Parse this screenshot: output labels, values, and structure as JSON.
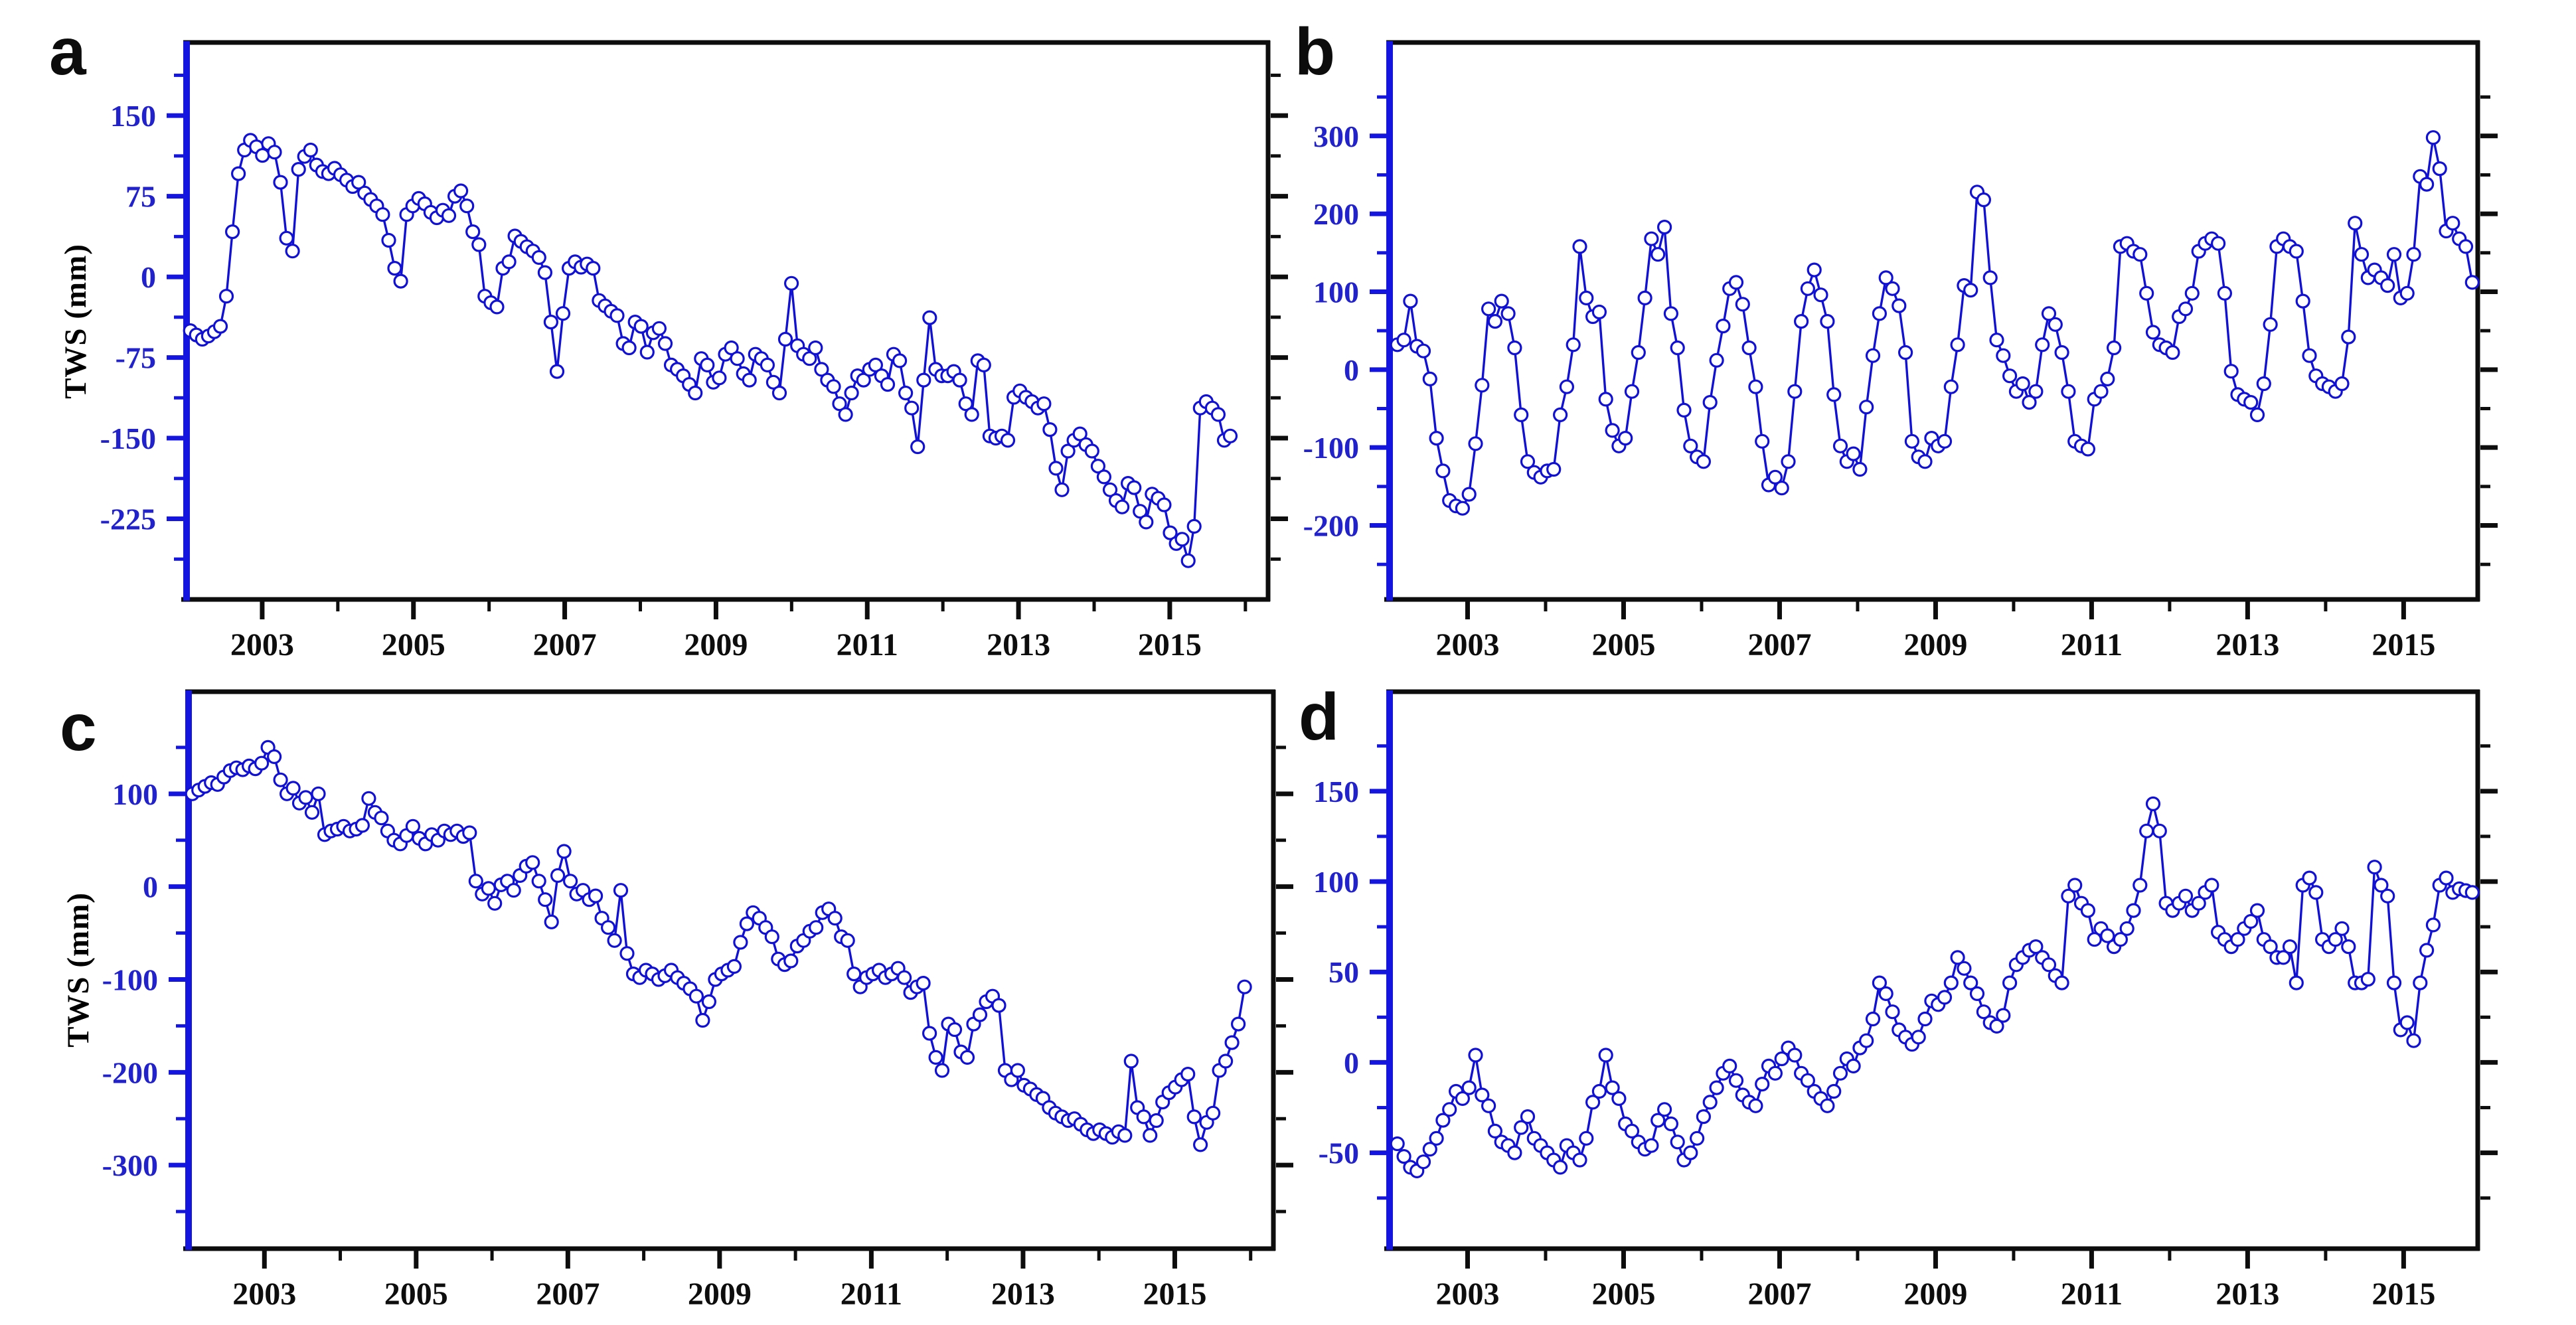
{
  "figure": {
    "background": "#ffffff",
    "series_color": "#1111d6",
    "marker_fill": "#ffffff",
    "y_label_color": "#2222cc",
    "left_axis_color": "#1515e0",
    "frame_color": "#0d0d0d",
    "x_label_color": "#0d0d0d"
  },
  "chart_data": [
    {
      "id": "panel-a",
      "panel_label": "a",
      "type": "line",
      "title": "",
      "xlabel": "",
      "ylabel": "TWS (mm)",
      "legend": null,
      "grid": false,
      "marker": "open-circle",
      "xlim": [
        2002.0,
        2016.3
      ],
      "ylim": [
        -300,
        218
      ],
      "x_major_ticks": [
        2003,
        2005,
        2007,
        2009,
        2011,
        2013,
        2015
      ],
      "x_minor_ticks": [
        2004,
        2006,
        2008,
        2010,
        2012,
        2014,
        2016
      ],
      "y_major_ticks": [
        150,
        75,
        0,
        -75,
        -150,
        -225
      ],
      "y_minor_ticks": [
        187.5,
        112.5,
        37.5,
        -37.5,
        -112.5,
        -187.5,
        -262.5
      ],
      "x_start": 2002.05,
      "x_end": 2015.8,
      "values": [
        -50,
        -54,
        -58,
        -55,
        -51,
        -46,
        -18,
        42,
        96,
        118,
        127,
        121,
        113,
        124,
        116,
        88,
        36,
        24,
        100,
        112,
        118,
        104,
        98,
        96,
        101,
        95,
        90,
        84,
        88,
        78,
        72,
        66,
        58,
        34,
        8,
        -4,
        58,
        66,
        73,
        68,
        60,
        55,
        62,
        57,
        75,
        80,
        66,
        42,
        30,
        -18,
        -24,
        -28,
        8,
        14,
        38,
        33,
        28,
        24,
        18,
        4,
        -42,
        -88,
        -34,
        8,
        14,
        9,
        12,
        8,
        -22,
        -27,
        -32,
        -36,
        -62,
        -66,
        -42,
        -46,
        -70,
        -52,
        -48,
        -62,
        -82,
        -86,
        -92,
        -100,
        -108,
        -76,
        -82,
        -98,
        -94,
        -72,
        -66,
        -76,
        -90,
        -96,
        -72,
        -76,
        -82,
        -98,
        -108,
        -58,
        -6,
        -64,
        -72,
        -76,
        -66,
        -86,
        -96,
        -102,
        -118,
        -128,
        -108,
        -92,
        -96,
        -86,
        -82,
        -92,
        -100,
        -72,
        -78,
        -108,
        -122,
        -158,
        -96,
        -38,
        -86,
        -92,
        -92,
        -88,
        -96,
        -118,
        -128,
        -78,
        -82,
        -148,
        -150,
        -148,
        -152,
        -112,
        -106,
        -112,
        -116,
        -122,
        -118,
        -142,
        -178,
        -198,
        -162,
        -152,
        -146,
        -156,
        -162,
        -176,
        -186,
        -198,
        -208,
        -214,
        -192,
        -196,
        -218,
        -228,
        -202,
        -206,
        -212,
        -238,
        -248,
        -244,
        -264,
        -232,
        -122,
        -116,
        -122,
        -128,
        -152,
        -148
      ]
    },
    {
      "id": "panel-b",
      "panel_label": "b",
      "type": "line",
      "title": "",
      "xlabel": "",
      "ylabel": "",
      "legend": null,
      "grid": false,
      "marker": "open-circle",
      "xlim": [
        2002.0,
        2015.95
      ],
      "ylim": [
        -295,
        420
      ],
      "x_major_ticks": [
        2003,
        2005,
        2007,
        2009,
        2011,
        2013,
        2015
      ],
      "x_minor_ticks": [
        2004,
        2006,
        2008,
        2010,
        2012,
        2014
      ],
      "y_major_ticks": [
        300,
        200,
        100,
        0,
        -100,
        -200
      ],
      "y_minor_ticks": [
        350,
        250,
        150,
        50,
        -50,
        -150,
        -250
      ],
      "x_start": 2002.1,
      "x_end": 2015.88,
      "values": [
        32,
        38,
        88,
        30,
        24,
        -12,
        -88,
        -130,
        -168,
        -175,
        -178,
        -160,
        -95,
        -20,
        78,
        62,
        88,
        72,
        28,
        -58,
        -118,
        -132,
        -138,
        -130,
        -128,
        -58,
        -22,
        32,
        158,
        92,
        68,
        74,
        -38,
        -78,
        -98,
        -88,
        -28,
        22,
        92,
        168,
        148,
        183,
        72,
        28,
        -52,
        -98,
        -112,
        -118,
        -42,
        12,
        56,
        104,
        112,
        84,
        28,
        -22,
        -92,
        -148,
        -138,
        -152,
        -118,
        -28,
        62,
        104,
        128,
        96,
        62,
        -32,
        -98,
        -118,
        -108,
        -128,
        -48,
        18,
        72,
        118,
        104,
        82,
        22,
        -92,
        -112,
        -118,
        -88,
        -98,
        -92,
        -22,
        32,
        108,
        102,
        228,
        218,
        118,
        38,
        18,
        -8,
        -28,
        -18,
        -42,
        -28,
        32,
        72,
        58,
        22,
        -28,
        -92,
        -98,
        -102,
        -38,
        -28,
        -12,
        28,
        158,
        162,
        152,
        148,
        98,
        48,
        32,
        28,
        22,
        68,
        78,
        98,
        152,
        162,
        168,
        162,
        98,
        -2,
        -32,
        -38,
        -42,
        -58,
        -18,
        58,
        158,
        168,
        158,
        152,
        88,
        18,
        -8,
        -18,
        -22,
        -28,
        -18,
        42,
        188,
        148,
        118,
        128,
        118,
        108,
        148,
        92,
        98,
        148,
        248,
        238,
        298,
        258,
        178,
        188,
        168,
        158,
        112
      ]
    },
    {
      "id": "panel-c",
      "panel_label": "c",
      "type": "line",
      "title": "",
      "xlabel": "",
      "ylabel": "TWS (mm)",
      "legend": null,
      "grid": false,
      "marker": "open-circle",
      "xlim": [
        2002.0,
        2016.3
      ],
      "ylim": [
        -390,
        210
      ],
      "x_major_ticks": [
        2003,
        2005,
        2007,
        2009,
        2011,
        2013,
        2015
      ],
      "x_minor_ticks": [
        2004,
        2006,
        2008,
        2010,
        2012,
        2014,
        2016
      ],
      "y_major_ticks": [
        100,
        0,
        -100,
        -200,
        -300
      ],
      "y_minor_ticks": [
        150,
        50,
        -50,
        -150,
        -250,
        -350
      ],
      "x_start": 2002.05,
      "x_end": 2015.92,
      "values": [
        100,
        104,
        108,
        112,
        110,
        118,
        125,
        128,
        126,
        130,
        127,
        133,
        150,
        140,
        115,
        100,
        106,
        90,
        96,
        80,
        100,
        56,
        60,
        62,
        65,
        60,
        62,
        66,
        95,
        80,
        74,
        60,
        50,
        46,
        55,
        65,
        52,
        46,
        56,
        50,
        60,
        56,
        60,
        54,
        58,
        6,
        -8,
        -2,
        -18,
        2,
        6,
        -4,
        12,
        22,
        26,
        6,
        -14,
        -38,
        12,
        38,
        6,
        -8,
        -4,
        -14,
        -10,
        -34,
        -44,
        -58,
        -4,
        -72,
        -94,
        -98,
        -90,
        -94,
        -100,
        -96,
        -90,
        -98,
        -104,
        -110,
        -118,
        -144,
        -124,
        -100,
        -94,
        -90,
        -86,
        -60,
        -40,
        -28,
        -34,
        -44,
        -54,
        -78,
        -84,
        -80,
        -64,
        -58,
        -48,
        -44,
        -28,
        -24,
        -34,
        -54,
        -58,
        -94,
        -108,
        -98,
        -94,
        -90,
        -98,
        -94,
        -88,
        -98,
        -114,
        -108,
        -104,
        -158,
        -184,
        -198,
        -148,
        -154,
        -178,
        -184,
        -148,
        -138,
        -124,
        -118,
        -128,
        -198,
        -208,
        -198,
        -214,
        -218,
        -224,
        -228,
        -238,
        -244,
        -248,
        -252,
        -250,
        -256,
        -262,
        -266,
        -262,
        -266,
        -270,
        -264,
        -268,
        -188,
        -238,
        -248,
        -268,
        -252,
        -232,
        -222,
        -216,
        -208,
        -202,
        -248,
        -278,
        -254,
        -244,
        -198,
        -188,
        -168,
        -148,
        -108
      ]
    },
    {
      "id": "panel-d",
      "panel_label": "d",
      "type": "line",
      "title": "",
      "xlabel": "",
      "ylabel": "",
      "legend": null,
      "grid": false,
      "marker": "open-circle",
      "xlim": [
        2002.0,
        2015.95
      ],
      "ylim": [
        -103,
        205
      ],
      "x_major_ticks": [
        2003,
        2005,
        2007,
        2009,
        2011,
        2013,
        2015
      ],
      "x_minor_ticks": [
        2004,
        2006,
        2008,
        2010,
        2012,
        2014
      ],
      "y_major_ticks": [
        150,
        100,
        50,
        0,
        -50
      ],
      "y_minor_ticks": [
        175,
        125,
        75,
        25,
        -25,
        -75
      ],
      "x_start": 2002.1,
      "x_end": 2015.88,
      "values": [
        -45,
        -52,
        -58,
        -60,
        -55,
        -48,
        -42,
        -32,
        -26,
        -16,
        -20,
        -14,
        4,
        -18,
        -24,
        -38,
        -44,
        -46,
        -50,
        -36,
        -30,
        -42,
        -46,
        -50,
        -54,
        -58,
        -46,
        -50,
        -54,
        -42,
        -22,
        -16,
        4,
        -14,
        -20,
        -34,
        -38,
        -44,
        -48,
        -46,
        -32,
        -26,
        -34,
        -44,
        -54,
        -50,
        -42,
        -30,
        -22,
        -14,
        -6,
        -2,
        -10,
        -18,
        -22,
        -24,
        -12,
        -2,
        -6,
        2,
        8,
        4,
        -6,
        -10,
        -16,
        -20,
        -24,
        -16,
        -6,
        2,
        -2,
        8,
        12,
        24,
        44,
        38,
        28,
        18,
        14,
        10,
        14,
        24,
        34,
        32,
        36,
        44,
        58,
        52,
        44,
        38,
        28,
        22,
        20,
        26,
        44,
        54,
        58,
        62,
        64,
        58,
        54,
        48,
        44,
        92,
        98,
        88,
        84,
        68,
        74,
        70,
        64,
        68,
        74,
        84,
        98,
        128,
        143,
        128,
        88,
        84,
        88,
        92,
        84,
        88,
        94,
        98,
        72,
        68,
        64,
        68,
        74,
        78,
        84,
        68,
        64,
        58,
        58,
        64,
        44,
        98,
        102,
        94,
        68,
        64,
        68,
        74,
        64,
        44,
        44,
        46,
        108,
        98,
        92,
        44,
        18,
        22,
        12,
        44,
        62,
        76,
        98,
        102,
        94,
        96,
        95,
        94
      ]
    }
  ]
}
